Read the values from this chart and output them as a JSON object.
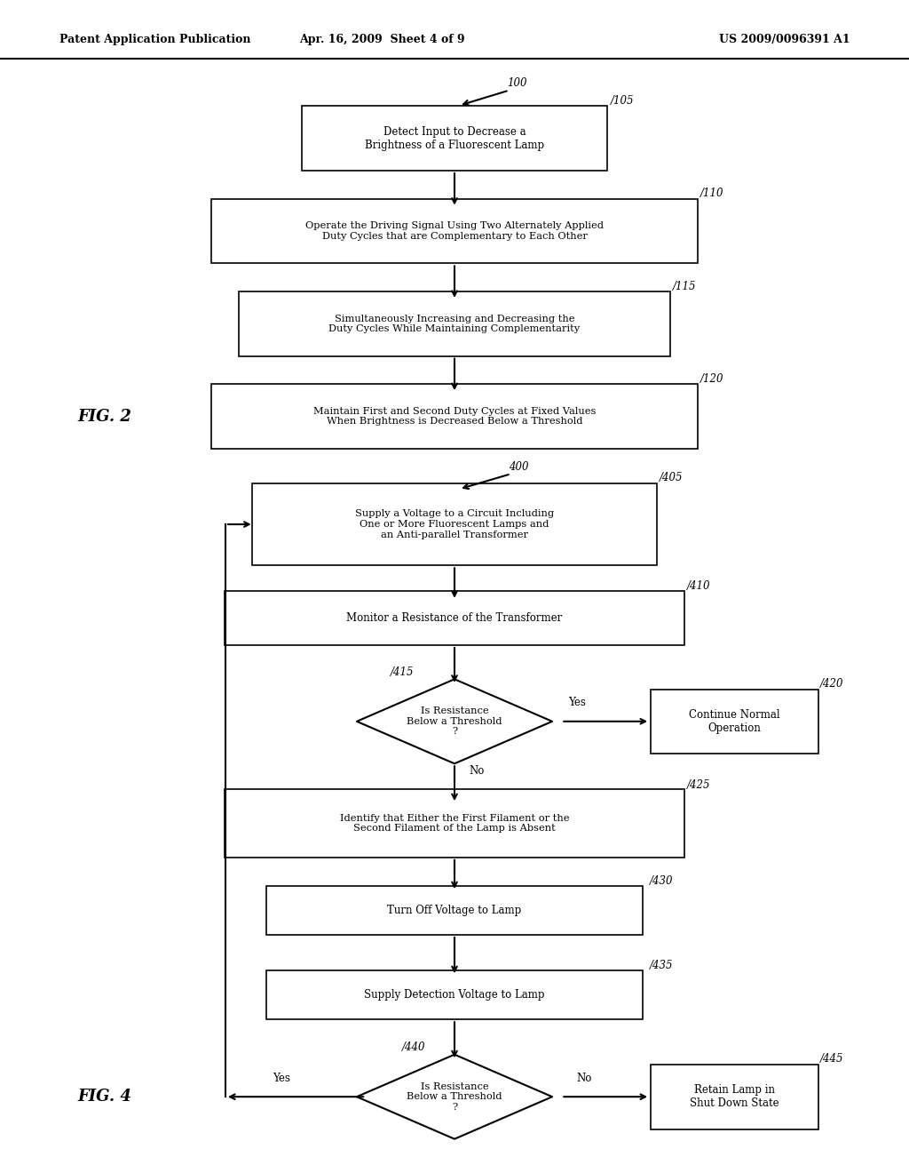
{
  "bg_color": "#ffffff",
  "header_left": "Patent Application Publication",
  "header_mid": "Apr. 16, 2009  Sheet 4 of 9",
  "header_right": "US 2009/0096391 A1",
  "fig2_label": "FIG. 2",
  "fig4_label": "FIG. 4",
  "box105_text": "Detect Input to Decrease a\nBrightness of a Fluorescent Lamp",
  "box110_text": "Operate the Driving Signal Using Two Alternately Applied\nDuty Cycles that are Complementary to Each Other",
  "box115_text": "Simultaneously Increasing and Decreasing the\nDuty Cycles While Maintaining Complementarity",
  "box120_text": "Maintain First and Second Duty Cycles at Fixed Values\nWhen Brightness is Decreased Below a Threshold",
  "box405_text": "Supply a Voltage to a Circuit Including\nOne or More Fluorescent Lamps and\nan Anti-parallel Transformer",
  "box410_text": "Monitor a Resistance of the Transformer",
  "box415_text": "Is Resistance\nBelow a Threshold\n?",
  "box420_text": "Continue Normal\nOperation",
  "box425_text": "Identify that Either the First Filament or the\nSecond Filament of the Lamp is Absent",
  "box430_text": "Turn Off Voltage to Lamp",
  "box435_text": "Supply Detection Voltage to Lamp",
  "box440_text": "Is Resistance\nBelow a Threshold\n?",
  "box445_text": "Retain Lamp in\nShut Down State"
}
